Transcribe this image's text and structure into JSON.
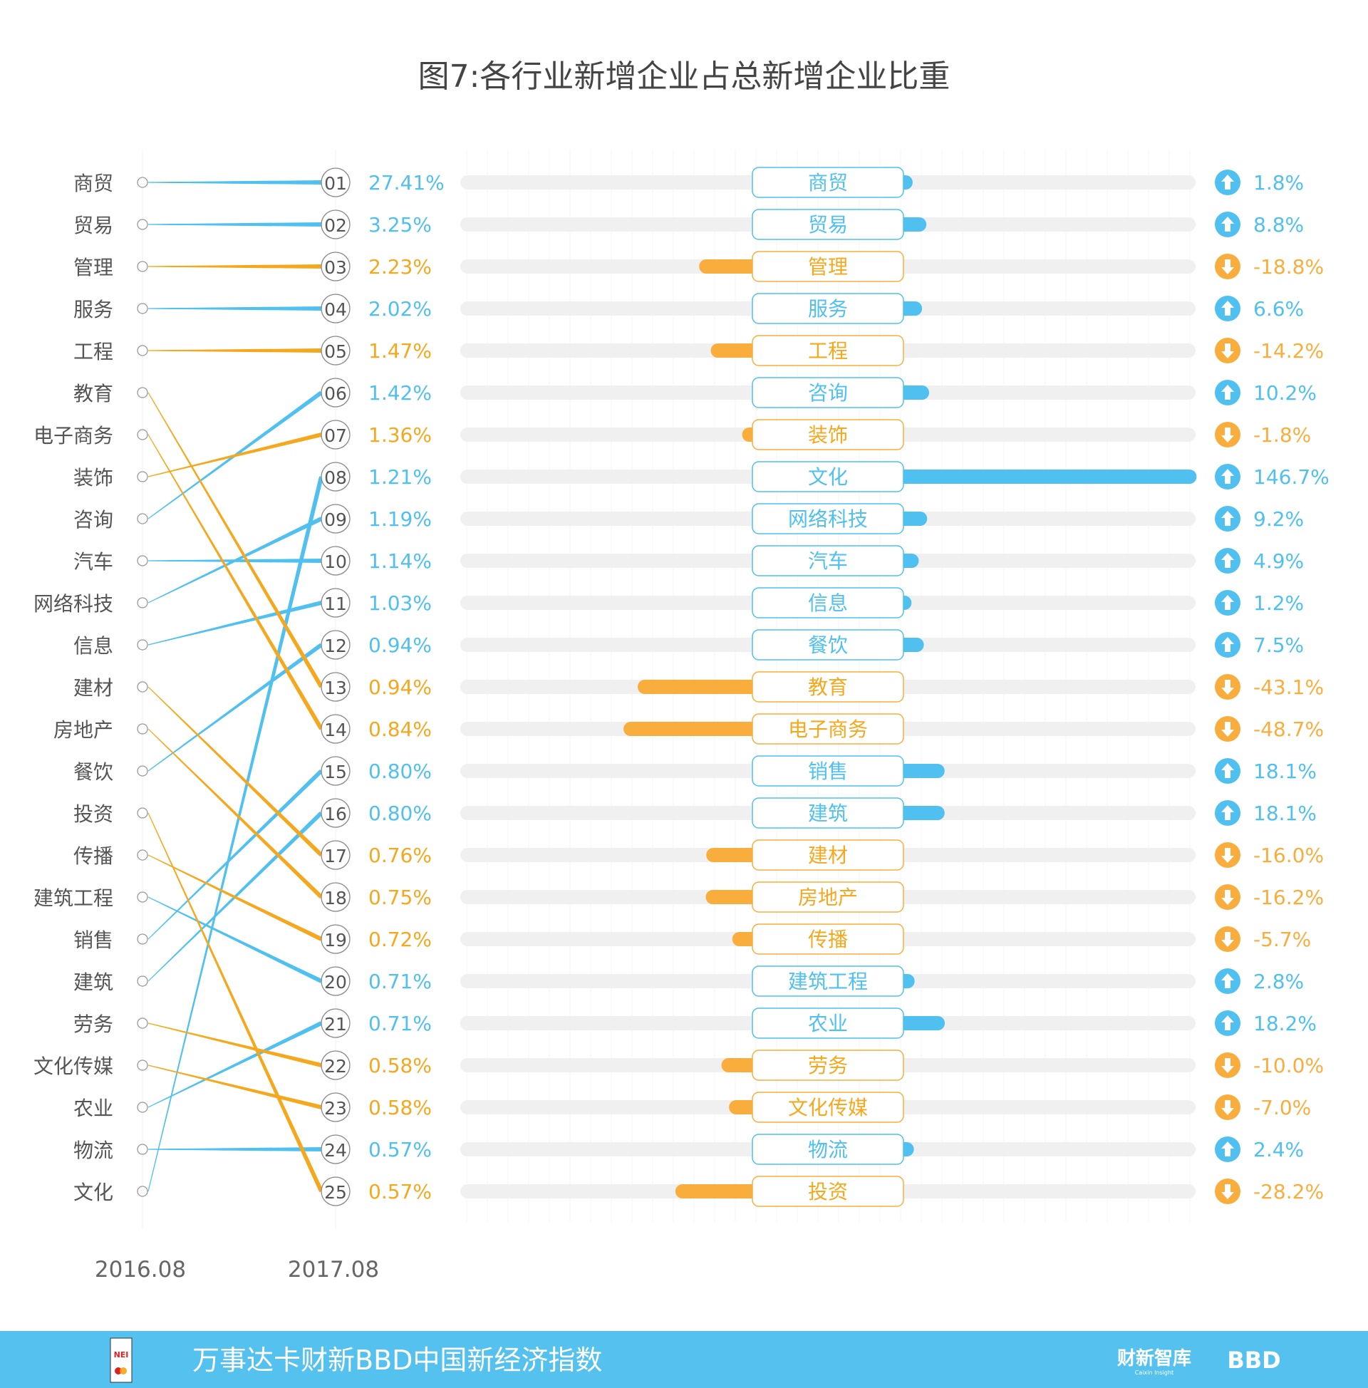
{
  "title": "图7:各行业新增企业占总新增企业比重",
  "colors": {
    "up": "#4fc0ef",
    "down": "#f5a81e",
    "down_bar": "#f9ad3c",
    "track": "#f0f0f0",
    "label": "#555555",
    "footer": "#55c1ef"
  },
  "chart_data": {
    "type": "table",
    "title": "图7:各行业新增企业占总新增企业比重",
    "period_labels": [
      "2016.08",
      "2017.08"
    ],
    "ranking_2016": [
      "商贸",
      "贸易",
      "管理",
      "服务",
      "工程",
      "教育",
      "电子商务",
      "装饰",
      "咨询",
      "汽车",
      "网络科技",
      "信息",
      "建材",
      "房地产",
      "餐饮",
      "投资",
      "传播",
      "建筑工程",
      "销售",
      "建筑",
      "劳务",
      "文化传媒",
      "农业",
      "物流",
      "文化"
    ],
    "rows_2017": [
      {
        "rank": "01",
        "name": "商贸",
        "share": "27.41%",
        "change": "1.8%",
        "change_value": 1.8,
        "direction": "up"
      },
      {
        "rank": "02",
        "name": "贸易",
        "share": "3.25%",
        "change": "8.8%",
        "change_value": 8.8,
        "direction": "up"
      },
      {
        "rank": "03",
        "name": "管理",
        "share": "2.23%",
        "change": "-18.8%",
        "change_value": -18.8,
        "direction": "down"
      },
      {
        "rank": "04",
        "name": "服务",
        "share": "2.02%",
        "change": "6.6%",
        "change_value": 6.6,
        "direction": "up"
      },
      {
        "rank": "05",
        "name": "工程",
        "share": "1.47%",
        "change": "-14.2%",
        "change_value": -14.2,
        "direction": "down"
      },
      {
        "rank": "06",
        "name": "咨询",
        "share": "1.42%",
        "change": "10.2%",
        "change_value": 10.2,
        "direction": "up"
      },
      {
        "rank": "07",
        "name": "装饰",
        "share": "1.36%",
        "change": "-1.8%",
        "change_value": -1.8,
        "direction": "down"
      },
      {
        "rank": "08",
        "name": "文化",
        "share": "1.21%",
        "change": "146.7%",
        "change_value": 146.7,
        "direction": "up"
      },
      {
        "rank": "09",
        "name": "网络科技",
        "share": "1.19%",
        "change": "9.2%",
        "change_value": 9.2,
        "direction": "up"
      },
      {
        "rank": "10",
        "name": "汽车",
        "share": "1.14%",
        "change": "4.9%",
        "change_value": 4.9,
        "direction": "up"
      },
      {
        "rank": "11",
        "name": "信息",
        "share": "1.03%",
        "change": "1.2%",
        "change_value": 1.2,
        "direction": "up"
      },
      {
        "rank": "12",
        "name": "餐饮",
        "share": "0.94%",
        "change": "7.5%",
        "change_value": 7.5,
        "direction": "up"
      },
      {
        "rank": "13",
        "name": "教育",
        "share": "0.94%",
        "change": "-43.1%",
        "change_value": -43.1,
        "direction": "down"
      },
      {
        "rank": "14",
        "name": "电子商务",
        "share": "0.84%",
        "change": "-48.7%",
        "change_value": -48.7,
        "direction": "down"
      },
      {
        "rank": "15",
        "name": "销售",
        "share": "0.80%",
        "change": "18.1%",
        "change_value": 18.1,
        "direction": "up"
      },
      {
        "rank": "16",
        "name": "建筑",
        "share": "0.80%",
        "change": "18.1%",
        "change_value": 18.1,
        "direction": "up"
      },
      {
        "rank": "17",
        "name": "建材",
        "share": "0.76%",
        "change": "-16.0%",
        "change_value": -16.0,
        "direction": "down"
      },
      {
        "rank": "18",
        "name": "房地产",
        "share": "0.75%",
        "change": "-16.2%",
        "change_value": -16.2,
        "direction": "down"
      },
      {
        "rank": "19",
        "name": "传播",
        "share": "0.72%",
        "change": "-5.7%",
        "change_value": -5.7,
        "direction": "down"
      },
      {
        "rank": "20",
        "name": "建筑工程",
        "share": "0.71%",
        "change": "2.8%",
        "change_value": 2.8,
        "direction": "up"
      },
      {
        "rank": "21",
        "name": "农业",
        "share": "0.71%",
        "change": "18.2%",
        "change_value": 18.2,
        "direction": "up"
      },
      {
        "rank": "22",
        "name": "劳务",
        "share": "0.58%",
        "change": "-10.0%",
        "change_value": -10.0,
        "direction": "down"
      },
      {
        "rank": "23",
        "name": "文化传媒",
        "share": "0.58%",
        "change": "-7.0%",
        "change_value": -7.0,
        "direction": "down"
      },
      {
        "rank": "24",
        "name": "物流",
        "share": "0.57%",
        "change": "2.4%",
        "change_value": 2.4,
        "direction": "up"
      },
      {
        "rank": "25",
        "name": "投资",
        "share": "0.57%",
        "change": "-28.2%",
        "change_value": -28.2,
        "direction": "down"
      }
    ]
  },
  "footer": {
    "text": "万事达卡财新BBD中国新经济指数",
    "logo_left": "NEI",
    "logo_caixin": "财新智库",
    "logo_caixin_sub": "Caixin Insight",
    "logo_bbd": "BBD"
  }
}
